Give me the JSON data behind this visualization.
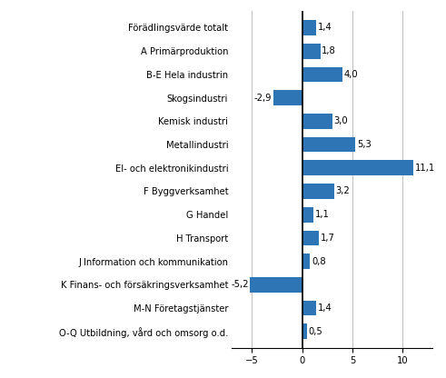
{
  "categories": [
    "Förädlingsvärde totalt",
    "A Primärproduktion",
    "B-E Hela industrin",
    "Skogsindustri",
    "Kemisk industri",
    "Metallindustri",
    "El- och elektronikindustri",
    "F Byggverksamhet",
    "G Handel",
    "H Transport",
    "J Information och kommunikation",
    "K Finans- och försäkringsverksamhet",
    "M-N Företagstjänster",
    "O-Q Utbildning, vård och omsorg o.d."
  ],
  "values": [
    1.4,
    1.8,
    4.0,
    -2.9,
    3.0,
    5.3,
    11.1,
    3.2,
    1.1,
    1.7,
    0.8,
    -5.2,
    1.4,
    0.5
  ],
  "bar_color": "#2e75b6",
  "xlim": [
    -7,
    13
  ],
  "xticks": [
    -5,
    0,
    5,
    10
  ],
  "background_color": "#ffffff",
  "label_fontsize": 7.2,
  "value_fontsize": 7.2,
  "bar_height": 0.65
}
